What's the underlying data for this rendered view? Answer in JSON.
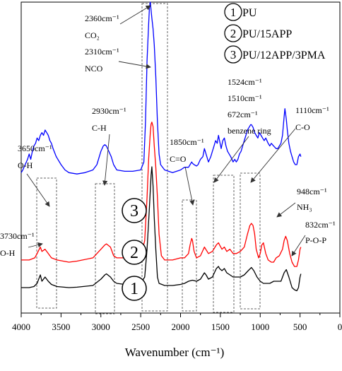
{
  "chart_data": {
    "type": "line",
    "title": "",
    "xlabel": "Wavenumber (cm⁻¹)",
    "ylabel": "",
    "xlim": [
      4000,
      0
    ],
    "x_ticks": [
      4000,
      3500,
      3000,
      2500,
      2000,
      1500,
      1000,
      500,
      0
    ],
    "grid": false,
    "legend_position": "top-right",
    "colors": {
      "PU": "#000000",
      "PU/15APP": "#ff0000",
      "PU/12APP/3PMA": "#0000ff",
      "annotation": "#333333"
    },
    "legend": [
      {
        "marker": "1",
        "label": "PU"
      },
      {
        "marker": "2",
        "label": "PU/15APP"
      },
      {
        "marker": "3",
        "label": "PU/12APP/3PMA"
      }
    ],
    "series": [
      {
        "name": "PU",
        "marker": "1",
        "color": "#000000",
        "points": [
          [
            4000,
            0.07
          ],
          [
            3900,
            0.07
          ],
          [
            3840,
            0.075
          ],
          [
            3800,
            0.09
          ],
          [
            3760,
            0.13
          ],
          [
            3740,
            0.1
          ],
          [
            3700,
            0.12
          ],
          [
            3660,
            0.1
          ],
          [
            3620,
            0.085
          ],
          [
            3550,
            0.075
          ],
          [
            3400,
            0.07
          ],
          [
            3300,
            0.072
          ],
          [
            3100,
            0.08
          ],
          [
            3000,
            0.11
          ],
          [
            2950,
            0.13
          ],
          [
            2930,
            0.135
          ],
          [
            2880,
            0.12
          ],
          [
            2840,
            0.1
          ],
          [
            2800,
            0.09
          ],
          [
            2700,
            0.085
          ],
          [
            2600,
            0.085
          ],
          [
            2500,
            0.09
          ],
          [
            2450,
            0.12
          ],
          [
            2420,
            0.25
          ],
          [
            2390,
            0.45
          ],
          [
            2370,
            0.6
          ],
          [
            2360,
            0.64
          ],
          [
            2345,
            0.55
          ],
          [
            2330,
            0.4
          ],
          [
            2310,
            0.25
          ],
          [
            2290,
            0.12
          ],
          [
            2270,
            0.09
          ],
          [
            2200,
            0.08
          ],
          [
            2100,
            0.08
          ],
          [
            2000,
            0.085
          ],
          [
            1950,
            0.09
          ],
          [
            1900,
            0.1
          ],
          [
            1850,
            0.105
          ],
          [
            1800,
            0.1
          ],
          [
            1750,
            0.11
          ],
          [
            1700,
            0.14
          ],
          [
            1680,
            0.13
          ],
          [
            1650,
            0.11
          ],
          [
            1600,
            0.12
          ],
          [
            1550,
            0.16
          ],
          [
            1524,
            0.17
          ],
          [
            1510,
            0.16
          ],
          [
            1480,
            0.15
          ],
          [
            1450,
            0.16
          ],
          [
            1420,
            0.14
          ],
          [
            1380,
            0.13
          ],
          [
            1340,
            0.12
          ],
          [
            1300,
            0.12
          ],
          [
            1250,
            0.12
          ],
          [
            1200,
            0.13
          ],
          [
            1150,
            0.15
          ],
          [
            1110,
            0.165
          ],
          [
            1080,
            0.15
          ],
          [
            1040,
            0.12
          ],
          [
            1000,
            0.1
          ],
          [
            960,
            0.09
          ],
          [
            920,
            0.09
          ],
          [
            880,
            0.09
          ],
          [
            830,
            0.1
          ],
          [
            780,
            0.1
          ],
          [
            740,
            0.1
          ],
          [
            700,
            0.14
          ],
          [
            672,
            0.155
          ],
          [
            640,
            0.12
          ],
          [
            600,
            0.07
          ],
          [
            570,
            0.06
          ],
          [
            540,
            0.055
          ],
          [
            520,
            0.07
          ],
          [
            500,
            0.12
          ],
          [
            490,
            0.135
          ]
        ]
      },
      {
        "name": "PU/15APP",
        "marker": "2",
        "color": "#ff0000",
        "points": [
          [
            4000,
            0.21
          ],
          [
            3900,
            0.21
          ],
          [
            3830,
            0.22
          ],
          [
            3800,
            0.24
          ],
          [
            3760,
            0.27
          ],
          [
            3740,
            0.25
          ],
          [
            3700,
            0.26
          ],
          [
            3660,
            0.24
          ],
          [
            3620,
            0.22
          ],
          [
            3550,
            0.21
          ],
          [
            3400,
            0.2
          ],
          [
            3300,
            0.205
          ],
          [
            3100,
            0.22
          ],
          [
            3000,
            0.26
          ],
          [
            2950,
            0.28
          ],
          [
            2930,
            0.285
          ],
          [
            2880,
            0.27
          ],
          [
            2840,
            0.23
          ],
          [
            2800,
            0.22
          ],
          [
            2700,
            0.22
          ],
          [
            2600,
            0.22
          ],
          [
            2500,
            0.225
          ],
          [
            2450,
            0.3
          ],
          [
            2420,
            0.5
          ],
          [
            2400,
            0.68
          ],
          [
            2380,
            0.8
          ],
          [
            2370,
            0.84
          ],
          [
            2360,
            0.85
          ],
          [
            2345,
            0.83
          ],
          [
            2330,
            0.74
          ],
          [
            2310,
            0.64
          ],
          [
            2290,
            0.5
          ],
          [
            2270,
            0.33
          ],
          [
            2240,
            0.23
          ],
          [
            2200,
            0.21
          ],
          [
            2100,
            0.21
          ],
          [
            2000,
            0.22
          ],
          [
            1950,
            0.22
          ],
          [
            1900,
            0.24
          ],
          [
            1880,
            0.28
          ],
          [
            1860,
            0.31
          ],
          [
            1850,
            0.3
          ],
          [
            1830,
            0.25
          ],
          [
            1800,
            0.22
          ],
          [
            1750,
            0.23
          ],
          [
            1700,
            0.27
          ],
          [
            1650,
            0.24
          ],
          [
            1600,
            0.25
          ],
          [
            1550,
            0.28
          ],
          [
            1524,
            0.29
          ],
          [
            1510,
            0.28
          ],
          [
            1480,
            0.26
          ],
          [
            1450,
            0.27
          ],
          [
            1420,
            0.25
          ],
          [
            1380,
            0.26
          ],
          [
            1340,
            0.24
          ],
          [
            1300,
            0.24
          ],
          [
            1250,
            0.25
          ],
          [
            1200,
            0.27
          ],
          [
            1160,
            0.33
          ],
          [
            1130,
            0.37
          ],
          [
            1110,
            0.38
          ],
          [
            1090,
            0.37
          ],
          [
            1070,
            0.33
          ],
          [
            1050,
            0.26
          ],
          [
            1020,
            0.22
          ],
          [
            1000,
            0.24
          ],
          [
            980,
            0.28
          ],
          [
            960,
            0.29
          ],
          [
            948,
            0.27
          ],
          [
            930,
            0.24
          ],
          [
            900,
            0.21
          ],
          [
            860,
            0.2
          ],
          [
            832,
            0.2
          ],
          [
            800,
            0.22
          ],
          [
            760,
            0.23
          ],
          [
            720,
            0.26
          ],
          [
            700,
            0.3
          ],
          [
            680,
            0.32
          ],
          [
            660,
            0.3
          ],
          [
            630,
            0.24
          ],
          [
            600,
            0.2
          ],
          [
            570,
            0.18
          ],
          [
            540,
            0.18
          ],
          [
            520,
            0.21
          ],
          [
            500,
            0.26
          ],
          [
            490,
            0.27
          ]
        ]
      },
      {
        "name": "PU/12APP/3PMA",
        "marker": "3",
        "color": "#0000ff",
        "points": [
          [
            4000,
            0.36
          ],
          [
            3980,
            0.37
          ],
          [
            3950,
            0.39
          ],
          [
            3920,
            0.41
          ],
          [
            3900,
            0.43
          ],
          [
            3880,
            0.41
          ],
          [
            3860,
            0.44
          ],
          [
            3840,
            0.46
          ],
          [
            3820,
            0.47
          ],
          [
            3800,
            0.49
          ],
          [
            3780,
            0.48
          ],
          [
            3760,
            0.5
          ],
          [
            3740,
            0.51
          ],
          [
            3720,
            0.5
          ],
          [
            3700,
            0.52
          ],
          [
            3680,
            0.51
          ],
          [
            3660,
            0.5
          ],
          [
            3640,
            0.48
          ],
          [
            3620,
            0.47
          ],
          [
            3600,
            0.45
          ],
          [
            3560,
            0.42
          ],
          [
            3500,
            0.39
          ],
          [
            3450,
            0.37
          ],
          [
            3400,
            0.36
          ],
          [
            3300,
            0.355
          ],
          [
            3200,
            0.36
          ],
          [
            3100,
            0.37
          ],
          [
            3050,
            0.39
          ],
          [
            3000,
            0.44
          ],
          [
            2970,
            0.46
          ],
          [
            2950,
            0.465
          ],
          [
            2930,
            0.46
          ],
          [
            2900,
            0.44
          ],
          [
            2870,
            0.42
          ],
          [
            2840,
            0.39
          ],
          [
            2800,
            0.37
          ],
          [
            2700,
            0.365
          ],
          [
            2600,
            0.365
          ],
          [
            2500,
            0.37
          ],
          [
            2460,
            0.4
          ],
          [
            2440,
            0.55
          ],
          [
            2420,
            0.78
          ],
          [
            2400,
            0.92
          ],
          [
            2390,
            0.98
          ],
          [
            2380,
            1.0
          ],
          [
            2370,
            0.97
          ],
          [
            2360,
            0.94
          ],
          [
            2345,
            0.9
          ],
          [
            2330,
            0.84
          ],
          [
            2310,
            0.72
          ],
          [
            2290,
            0.55
          ],
          [
            2270,
            0.43
          ],
          [
            2250,
            0.39
          ],
          [
            2200,
            0.37
          ],
          [
            2100,
            0.36
          ],
          [
            2000,
            0.37
          ],
          [
            1950,
            0.38
          ],
          [
            1900,
            0.38
          ],
          [
            1880,
            0.39
          ],
          [
            1860,
            0.4
          ],
          [
            1850,
            0.395
          ],
          [
            1830,
            0.39
          ],
          [
            1800,
            0.385
          ],
          [
            1780,
            0.39
          ],
          [
            1750,
            0.41
          ],
          [
            1720,
            0.42
          ],
          [
            1700,
            0.45
          ],
          [
            1680,
            0.43
          ],
          [
            1650,
            0.4
          ],
          [
            1620,
            0.42
          ],
          [
            1600,
            0.44
          ],
          [
            1580,
            0.46
          ],
          [
            1560,
            0.48
          ],
          [
            1540,
            0.47
          ],
          [
            1524,
            0.5
          ],
          [
            1510,
            0.48
          ],
          [
            1490,
            0.45
          ],
          [
            1470,
            0.48
          ],
          [
            1450,
            0.49
          ],
          [
            1430,
            0.46
          ],
          [
            1410,
            0.44
          ],
          [
            1390,
            0.43
          ],
          [
            1370,
            0.42
          ],
          [
            1340,
            0.4
          ],
          [
            1320,
            0.41
          ],
          [
            1300,
            0.4
          ],
          [
            1280,
            0.41
          ],
          [
            1260,
            0.43
          ],
          [
            1240,
            0.44
          ],
          [
            1220,
            0.46
          ],
          [
            1200,
            0.48
          ],
          [
            1180,
            0.5
          ],
          [
            1160,
            0.52
          ],
          [
            1140,
            0.53
          ],
          [
            1120,
            0.54
          ],
          [
            1110,
            0.54
          ],
          [
            1090,
            0.53
          ],
          [
            1070,
            0.51
          ],
          [
            1050,
            0.5
          ],
          [
            1030,
            0.49
          ],
          [
            1010,
            0.51
          ],
          [
            990,
            0.5
          ],
          [
            970,
            0.49
          ],
          [
            950,
            0.48
          ],
          [
            930,
            0.49
          ],
          [
            900,
            0.47
          ],
          [
            880,
            0.46
          ],
          [
            860,
            0.47
          ],
          [
            832,
            0.46
          ],
          [
            800,
            0.45
          ],
          [
            780,
            0.45
          ],
          [
            760,
            0.46
          ],
          [
            740,
            0.47
          ],
          [
            720,
            0.5
          ],
          [
            700,
            0.57
          ],
          [
            690,
            0.6
          ],
          [
            672,
            0.56
          ],
          [
            660,
            0.52
          ],
          [
            640,
            0.47
          ],
          [
            620,
            0.44
          ],
          [
            600,
            0.42
          ],
          [
            580,
            0.4
          ],
          [
            560,
            0.39
          ],
          [
            540,
            0.39
          ],
          [
            520,
            0.42
          ],
          [
            500,
            0.43
          ],
          [
            490,
            0.42
          ]
        ]
      }
    ],
    "annotations": [
      {
        "lines": [
          "2360cm⁻¹",
          "CO₂"
        ]
      },
      {
        "lines": [
          "2310cm⁻¹",
          "NCO"
        ]
      },
      {
        "lines": [
          "2930cm⁻¹",
          "C-H"
        ]
      },
      {
        "lines": [
          "3650cm⁻¹",
          "O-H"
        ]
      },
      {
        "lines": [
          "3730cm⁻¹",
          "O-H"
        ]
      },
      {
        "lines": [
          "1850cm⁻¹",
          "C=O"
        ]
      },
      {
        "lines": [
          "1524cm⁻¹",
          "1510cm⁻¹",
          "672cm⁻¹",
          "benzene ring"
        ]
      },
      {
        "lines": [
          "1110cm⁻¹",
          "C-O"
        ]
      },
      {
        "lines": [
          "948cm⁻¹",
          "NH₃"
        ]
      },
      {
        "lines": [
          "832cm⁻¹",
          "P-O-P"
        ]
      }
    ]
  }
}
